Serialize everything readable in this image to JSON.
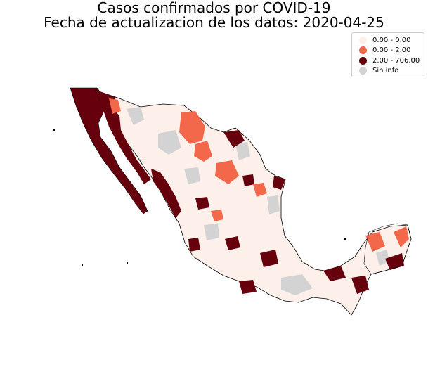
{
  "title_lines": [
    "Casos confirmados por COVID-19",
    "Fecha de actualizacion de los datos: 2020-04-25"
  ],
  "legend": {
    "items": [
      {
        "label": "0.00 - 0.00",
        "color": "#fdf0ea"
      },
      {
        "label": "0.00 - 2.00",
        "color": "#f3674a"
      },
      {
        "label": "2.00 - 706.00",
        "color": "#67000d"
      },
      {
        "label": "Sin info",
        "color": "#d3d3d3"
      }
    ]
  },
  "colors": {
    "no_cases": "#fdf0ea",
    "low": "#f3674a",
    "high": "#67000d",
    "no_info": "#d3d3d3",
    "border": "#000000"
  }
}
